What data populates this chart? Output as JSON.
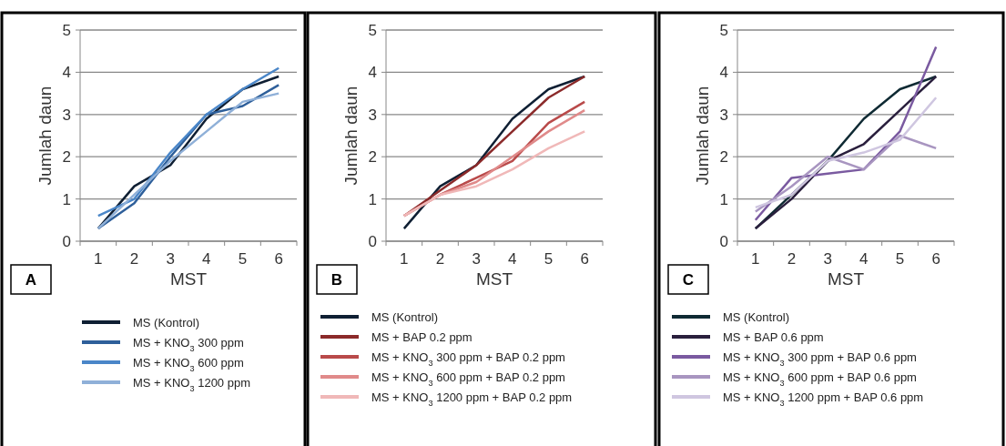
{
  "chart_data": [
    {
      "type": "line",
      "title": "A",
      "xlabel": "MST",
      "ylabel": "Jumlah daun",
      "categories": [
        "1",
        "2",
        "3",
        "4",
        "5",
        "6"
      ],
      "ylim": [
        0,
        5
      ],
      "yticks": [
        0,
        1,
        2,
        3,
        4,
        5
      ],
      "grid": "y",
      "legend": "bottom",
      "series": [
        {
          "name": "MS  (Kontrol)",
          "color": "#0f1f33",
          "values": [
            0.3,
            1.3,
            1.8,
            2.9,
            3.6,
            3.9
          ]
        },
        {
          "name": "MS + KNO$_{3}$  300 ppm",
          "color": "#2e5f9a",
          "values": [
            0.3,
            0.9,
            2.0,
            3.0,
            3.2,
            3.7
          ]
        },
        {
          "name": "MS + KNO$_{3}$  600 ppm",
          "color": "#4a86c8",
          "values": [
            0.6,
            1.0,
            2.1,
            3.0,
            3.6,
            4.1
          ]
        },
        {
          "name": "MS + KNO$_{3}$  1200 ppm",
          "color": "#8fb0d8",
          "values": [
            0.3,
            1.1,
            1.9,
            2.6,
            3.3,
            3.5
          ]
        }
      ]
    },
    {
      "type": "line",
      "title": "B",
      "xlabel": "MST",
      "ylabel": "Jumlah daun",
      "categories": [
        "1",
        "2",
        "3",
        "4",
        "5",
        "6"
      ],
      "ylim": [
        0,
        5
      ],
      "yticks": [
        0,
        1,
        2,
        3,
        4,
        5
      ],
      "grid": "y",
      "legend": "bottom",
      "series": [
        {
          "name": "MS  (Kontrol)",
          "color": "#0f1f33",
          "values": [
            0.3,
            1.3,
            1.8,
            2.9,
            3.6,
            3.9
          ]
        },
        {
          "name": "MS + BAP 0.2 ppm",
          "color": "#8b2a2a",
          "values": [
            0.6,
            1.2,
            1.8,
            2.6,
            3.4,
            3.9
          ]
        },
        {
          "name": "MS + KNO$_{3}$ 300 ppm + BAP 0.2 ppm",
          "color": "#b94a4a",
          "values": [
            0.6,
            1.1,
            1.5,
            1.9,
            2.8,
            3.3
          ]
        },
        {
          "name": "MS + KNO$_{3}$ 600 ppm + BAP 0.2 ppm",
          "color": "#e08a8a",
          "values": [
            0.6,
            1.1,
            1.4,
            2.0,
            2.6,
            3.1
          ]
        },
        {
          "name": "MS + KNO$_{3}$ 1200 ppm + BAP 0.2 ppm",
          "color": "#f0b8b8",
          "values": [
            0.6,
            1.1,
            1.3,
            1.7,
            2.2,
            2.6
          ]
        }
      ]
    },
    {
      "type": "line",
      "title": "C",
      "xlabel": "MST",
      "ylabel": "Jumlah daun",
      "categories": [
        "1",
        "2",
        "3",
        "4",
        "5",
        "6"
      ],
      "ylim": [
        0,
        5
      ],
      "yticks": [
        0,
        1,
        2,
        3,
        4,
        5
      ],
      "grid": "y",
      "legend": "bottom",
      "series": [
        {
          "name": "MS  (Kontrol)",
          "color": "#0f2a33",
          "values": [
            0.3,
            1.1,
            1.9,
            2.9,
            3.6,
            3.9
          ]
        },
        {
          "name": "MS + BAP 0.6 ppm",
          "color": "#2a1f3d",
          "values": [
            0.3,
            1.0,
            1.9,
            2.3,
            3.1,
            3.9
          ]
        },
        {
          "name": "MS + KNO$_{3}$ 300 ppm + BAP 0.6 ppm",
          "color": "#7a5aa0",
          "values": [
            0.5,
            1.5,
            1.6,
            1.7,
            2.6,
            4.6
          ]
        },
        {
          "name": "MS + KNO$_{3}$ 600 ppm + BAP 0.6 ppm",
          "color": "#a895c0",
          "values": [
            0.7,
            1.3,
            2.0,
            1.7,
            2.5,
            2.2
          ]
        },
        {
          "name": "MS + KNO$_{3}$ 1200 ppm + BAP 0.6 ppm",
          "color": "#cfc6e0",
          "values": [
            0.8,
            1.1,
            1.9,
            2.1,
            2.4,
            3.4
          ]
        }
      ]
    }
  ]
}
